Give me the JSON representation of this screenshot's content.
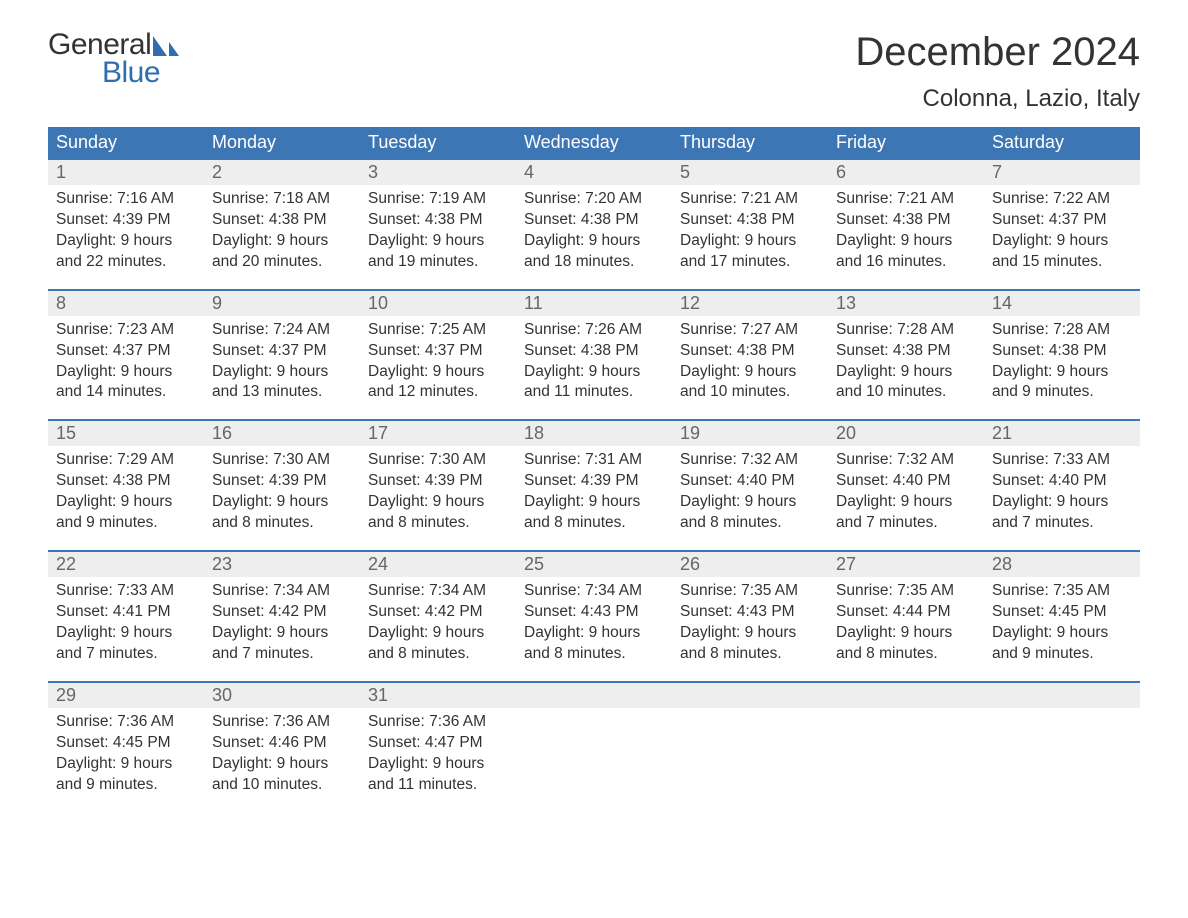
{
  "logo": {
    "top": "General",
    "bottom": "Blue",
    "sail_color": "#2f6db0"
  },
  "title": "December 2024",
  "location": "Colonna, Lazio, Italy",
  "header_bg": "#3d76b4",
  "daynum_bg": "#eeeeee",
  "weekdays": [
    "Sunday",
    "Monday",
    "Tuesday",
    "Wednesday",
    "Thursday",
    "Friday",
    "Saturday"
  ],
  "weeks": [
    [
      {
        "n": "1",
        "sr": "Sunrise: 7:16 AM",
        "ss": "Sunset: 4:39 PM",
        "d1": "Daylight: 9 hours",
        "d2": "and 22 minutes."
      },
      {
        "n": "2",
        "sr": "Sunrise: 7:18 AM",
        "ss": "Sunset: 4:38 PM",
        "d1": "Daylight: 9 hours",
        "d2": "and 20 minutes."
      },
      {
        "n": "3",
        "sr": "Sunrise: 7:19 AM",
        "ss": "Sunset: 4:38 PM",
        "d1": "Daylight: 9 hours",
        "d2": "and 19 minutes."
      },
      {
        "n": "4",
        "sr": "Sunrise: 7:20 AM",
        "ss": "Sunset: 4:38 PM",
        "d1": "Daylight: 9 hours",
        "d2": "and 18 minutes."
      },
      {
        "n": "5",
        "sr": "Sunrise: 7:21 AM",
        "ss": "Sunset: 4:38 PM",
        "d1": "Daylight: 9 hours",
        "d2": "and 17 minutes."
      },
      {
        "n": "6",
        "sr": "Sunrise: 7:21 AM",
        "ss": "Sunset: 4:38 PM",
        "d1": "Daylight: 9 hours",
        "d2": "and 16 minutes."
      },
      {
        "n": "7",
        "sr": "Sunrise: 7:22 AM",
        "ss": "Sunset: 4:37 PM",
        "d1": "Daylight: 9 hours",
        "d2": "and 15 minutes."
      }
    ],
    [
      {
        "n": "8",
        "sr": "Sunrise: 7:23 AM",
        "ss": "Sunset: 4:37 PM",
        "d1": "Daylight: 9 hours",
        "d2": "and 14 minutes."
      },
      {
        "n": "9",
        "sr": "Sunrise: 7:24 AM",
        "ss": "Sunset: 4:37 PM",
        "d1": "Daylight: 9 hours",
        "d2": "and 13 minutes."
      },
      {
        "n": "10",
        "sr": "Sunrise: 7:25 AM",
        "ss": "Sunset: 4:37 PM",
        "d1": "Daylight: 9 hours",
        "d2": "and 12 minutes."
      },
      {
        "n": "11",
        "sr": "Sunrise: 7:26 AM",
        "ss": "Sunset: 4:38 PM",
        "d1": "Daylight: 9 hours",
        "d2": "and 11 minutes."
      },
      {
        "n": "12",
        "sr": "Sunrise: 7:27 AM",
        "ss": "Sunset: 4:38 PM",
        "d1": "Daylight: 9 hours",
        "d2": "and 10 minutes."
      },
      {
        "n": "13",
        "sr": "Sunrise: 7:28 AM",
        "ss": "Sunset: 4:38 PM",
        "d1": "Daylight: 9 hours",
        "d2": "and 10 minutes."
      },
      {
        "n": "14",
        "sr": "Sunrise: 7:28 AM",
        "ss": "Sunset: 4:38 PM",
        "d1": "Daylight: 9 hours",
        "d2": "and 9 minutes."
      }
    ],
    [
      {
        "n": "15",
        "sr": "Sunrise: 7:29 AM",
        "ss": "Sunset: 4:38 PM",
        "d1": "Daylight: 9 hours",
        "d2": "and 9 minutes."
      },
      {
        "n": "16",
        "sr": "Sunrise: 7:30 AM",
        "ss": "Sunset: 4:39 PM",
        "d1": "Daylight: 9 hours",
        "d2": "and 8 minutes."
      },
      {
        "n": "17",
        "sr": "Sunrise: 7:30 AM",
        "ss": "Sunset: 4:39 PM",
        "d1": "Daylight: 9 hours",
        "d2": "and 8 minutes."
      },
      {
        "n": "18",
        "sr": "Sunrise: 7:31 AM",
        "ss": "Sunset: 4:39 PM",
        "d1": "Daylight: 9 hours",
        "d2": "and 8 minutes."
      },
      {
        "n": "19",
        "sr": "Sunrise: 7:32 AM",
        "ss": "Sunset: 4:40 PM",
        "d1": "Daylight: 9 hours",
        "d2": "and 8 minutes."
      },
      {
        "n": "20",
        "sr": "Sunrise: 7:32 AM",
        "ss": "Sunset: 4:40 PM",
        "d1": "Daylight: 9 hours",
        "d2": "and 7 minutes."
      },
      {
        "n": "21",
        "sr": "Sunrise: 7:33 AM",
        "ss": "Sunset: 4:40 PM",
        "d1": "Daylight: 9 hours",
        "d2": "and 7 minutes."
      }
    ],
    [
      {
        "n": "22",
        "sr": "Sunrise: 7:33 AM",
        "ss": "Sunset: 4:41 PM",
        "d1": "Daylight: 9 hours",
        "d2": "and 7 minutes."
      },
      {
        "n": "23",
        "sr": "Sunrise: 7:34 AM",
        "ss": "Sunset: 4:42 PM",
        "d1": "Daylight: 9 hours",
        "d2": "and 7 minutes."
      },
      {
        "n": "24",
        "sr": "Sunrise: 7:34 AM",
        "ss": "Sunset: 4:42 PM",
        "d1": "Daylight: 9 hours",
        "d2": "and 8 minutes."
      },
      {
        "n": "25",
        "sr": "Sunrise: 7:34 AM",
        "ss": "Sunset: 4:43 PM",
        "d1": "Daylight: 9 hours",
        "d2": "and 8 minutes."
      },
      {
        "n": "26",
        "sr": "Sunrise: 7:35 AM",
        "ss": "Sunset: 4:43 PM",
        "d1": "Daylight: 9 hours",
        "d2": "and 8 minutes."
      },
      {
        "n": "27",
        "sr": "Sunrise: 7:35 AM",
        "ss": "Sunset: 4:44 PM",
        "d1": "Daylight: 9 hours",
        "d2": "and 8 minutes."
      },
      {
        "n": "28",
        "sr": "Sunrise: 7:35 AM",
        "ss": "Sunset: 4:45 PM",
        "d1": "Daylight: 9 hours",
        "d2": "and 9 minutes."
      }
    ],
    [
      {
        "n": "29",
        "sr": "Sunrise: 7:36 AM",
        "ss": "Sunset: 4:45 PM",
        "d1": "Daylight: 9 hours",
        "d2": "and 9 minutes."
      },
      {
        "n": "30",
        "sr": "Sunrise: 7:36 AM",
        "ss": "Sunset: 4:46 PM",
        "d1": "Daylight: 9 hours",
        "d2": "and 10 minutes."
      },
      {
        "n": "31",
        "sr": "Sunrise: 7:36 AM",
        "ss": "Sunset: 4:47 PM",
        "d1": "Daylight: 9 hours",
        "d2": "and 11 minutes."
      },
      null,
      null,
      null,
      null
    ]
  ]
}
